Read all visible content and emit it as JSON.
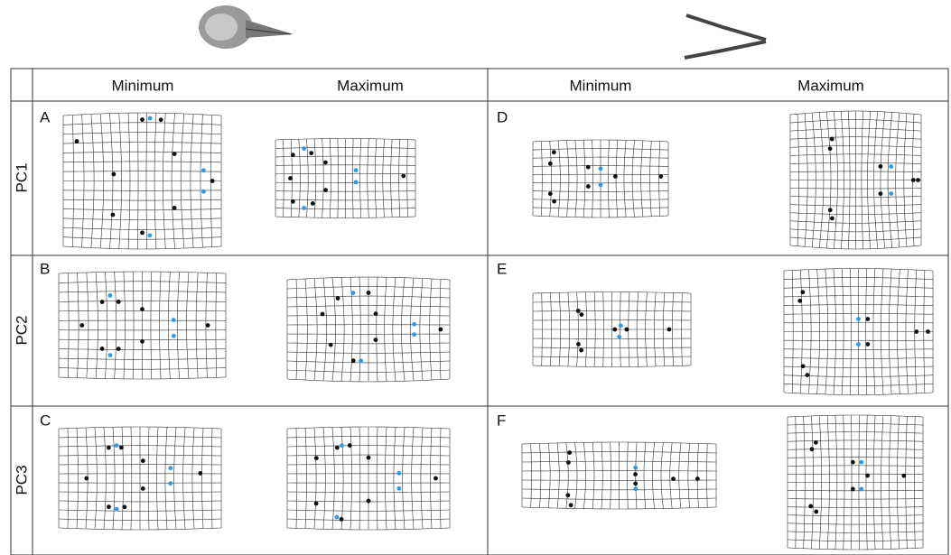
{
  "header": {
    "columns": [
      "Minimum",
      "Maximum",
      "Minimum",
      "Maximum"
    ]
  },
  "rows": [
    {
      "label": "PC1",
      "panels": [
        "A",
        "D"
      ]
    },
    {
      "label": "PC2",
      "panels": [
        "B",
        "E"
      ]
    },
    {
      "label": "PC3",
      "panels": [
        "C",
        "F"
      ]
    }
  ]
}
